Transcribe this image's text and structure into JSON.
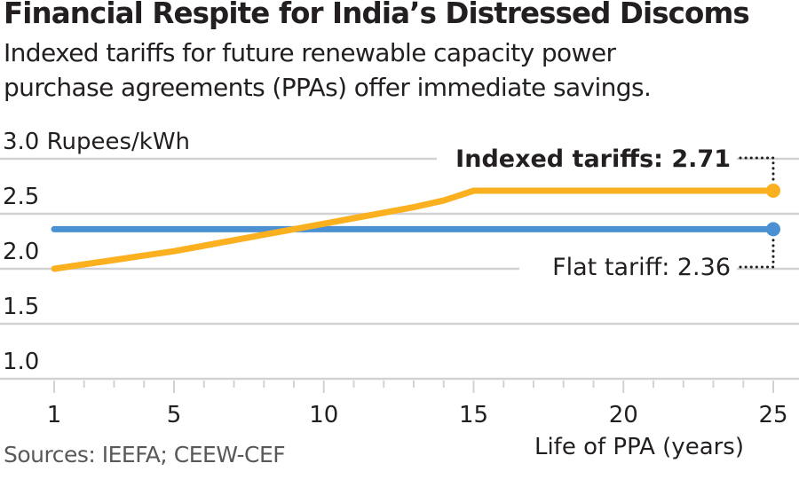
{
  "header": {
    "title": "Financial Respite for India’s Distressed Discoms",
    "subtitle_line1": "Indexed tariffs for future renewable capacity power",
    "subtitle_line2": "purchase agreements (PPAs) offer immediate savings."
  },
  "footer": {
    "source": "Sources: IEEFA; CEEW-CEF"
  },
  "chart_data": {
    "type": "line",
    "title": "Financial Respite for India’s Distressed Discoms",
    "subtitle": "Indexed tariffs for future renewable capacity power purchase agreements (PPAs) offer immediate savings.",
    "xlabel": "Life of PPA (years)",
    "ylabel": "Rupees/kWh",
    "ylabel_display": "3.0 Rupees/kWh",
    "xlim": [
      1,
      25
    ],
    "ylim": [
      1.0,
      3.0
    ],
    "x_ticks": [
      1,
      5,
      10,
      15,
      20,
      25
    ],
    "x_tick_labels": [
      "1",
      "5",
      "10",
      "15",
      "20",
      "25"
    ],
    "y_ticks": [
      1.0,
      1.5,
      2.0,
      2.5,
      3.0
    ],
    "y_tick_labels": [
      "1.0",
      "1.5",
      "2.0",
      "2.5",
      "3.0"
    ],
    "grid": true,
    "legend": "direct-labels at right end",
    "x": [
      1,
      2,
      3,
      4,
      5,
      6,
      7,
      8,
      9,
      10,
      11,
      12,
      13,
      14,
      15,
      16,
      17,
      18,
      19,
      20,
      21,
      22,
      23,
      24,
      25
    ],
    "series": [
      {
        "name": "Indexed tariffs",
        "color": "#fbb020",
        "values": [
          2.0,
          2.04,
          2.08,
          2.12,
          2.16,
          2.21,
          2.26,
          2.31,
          2.36,
          2.41,
          2.46,
          2.51,
          2.56,
          2.62,
          2.71,
          2.71,
          2.71,
          2.71,
          2.71,
          2.71,
          2.71,
          2.71,
          2.71,
          2.71,
          2.71
        ],
        "label": "Indexed tariffs:",
        "label_value": "2.71"
      },
      {
        "name": "Flat tariff",
        "color": "#4a90d2",
        "values": [
          2.36,
          2.36,
          2.36,
          2.36,
          2.36,
          2.36,
          2.36,
          2.36,
          2.36,
          2.36,
          2.36,
          2.36,
          2.36,
          2.36,
          2.36,
          2.36,
          2.36,
          2.36,
          2.36,
          2.36,
          2.36,
          2.36,
          2.36,
          2.36,
          2.36
        ],
        "label": "Flat tariff:",
        "label_value": "2.36"
      }
    ]
  }
}
